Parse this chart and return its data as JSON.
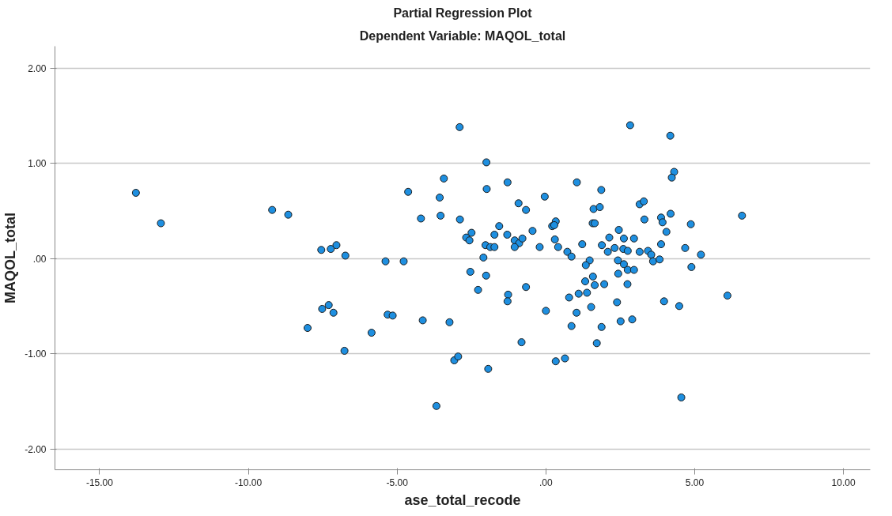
{
  "chart_data": {
    "type": "scatter",
    "title": "Partial Regression Plot",
    "subtitle": "Dependent Variable: MAQOL_total",
    "xlabel": "ase_total_recode",
    "ylabel": "MAQOL_total",
    "xlim": [
      -16.5,
      10.9
    ],
    "ylim": [
      -2.22,
      2.23
    ],
    "xticks": [
      {
        "value": -15,
        "label": "-15.00"
      },
      {
        "value": -10,
        "label": "-10.00"
      },
      {
        "value": -5,
        "label": "-5.00"
      },
      {
        "value": 0,
        "label": ".00"
      },
      {
        "value": 5,
        "label": "5.00"
      },
      {
        "value": 10,
        "label": "10.00"
      }
    ],
    "yticks": [
      {
        "value": -2,
        "label": "-2.00"
      },
      {
        "value": -1,
        "label": "-1.00"
      },
      {
        "value": 0,
        "label": ".00"
      },
      {
        "value": 1,
        "label": "1.00"
      },
      {
        "value": 2,
        "label": "2.00"
      }
    ],
    "grid": "y",
    "marker": "circle",
    "series": [
      {
        "color": "#1e8fe0",
        "x": [
          -13.78,
          -12.94,
          -9.2,
          -8.66,
          -8.01,
          -2.9,
          -2.0,
          -3.43,
          -4.63,
          -3.57,
          -1.99,
          -4.2,
          -3.54,
          -2.89,
          -1.57,
          -2.5,
          -2.68,
          -2.57,
          -1.73,
          -2.03,
          -1.87,
          -1.73,
          -2.1,
          -7.55,
          -7.23,
          -7.04,
          -6.74,
          -5.39,
          -4.78,
          -2.54,
          -2.01,
          -2.28,
          -7.52,
          -7.3,
          -7.14,
          -5.86,
          -5.32,
          -5.15,
          -4.14,
          -3.24,
          -6.77,
          -3.08,
          -2.95,
          -1.94,
          -3.68,
          -1.29,
          1.04,
          2.83,
          1.86,
          -0.04,
          -0.92,
          -0.67,
          1.6,
          1.81,
          3.15,
          3.29,
          3.31,
          0.21,
          0.33,
          0.28,
          1.57,
          1.64,
          -0.45,
          -1.3,
          -1.05,
          -0.9,
          -0.79,
          -1.05,
          -0.21,
          0.3,
          0.41,
          0.72,
          0.86,
          1.22,
          2.13,
          1.88,
          2.08,
          2.31,
          2.45,
          2.62,
          2.6,
          2.75,
          2.96,
          3.15,
          3.43,
          3.54,
          3.6,
          3.82,
          3.87,
          3.87,
          3.92,
          4.05,
          1.47,
          1.34,
          2.42,
          2.62,
          2.75,
          2.96,
          2.43,
          1.58,
          1.32,
          1.64,
          1.96,
          2.74,
          1.38,
          1.1,
          0.78,
          -0.67,
          -1.27,
          -1.29,
          2.39,
          3.97,
          0.0,
          1.52,
          1.03,
          0.86,
          1.87,
          2.51,
          2.9,
          -0.82,
          1.71,
          0.33,
          0.64,
          4.18,
          4.31,
          4.23,
          4.19,
          6.59,
          4.87,
          4.68,
          5.21,
          4.89,
          4.48,
          6.1,
          4.55
        ],
        "values": [
          0.69,
          0.37,
          0.51,
          0.46,
          -0.73,
          1.38,
          1.01,
          0.84,
          0.7,
          0.64,
          0.73,
          0.42,
          0.45,
          0.41,
          0.34,
          0.27,
          0.22,
          0.19,
          0.25,
          0.14,
          0.12,
          0.12,
          0.01,
          0.09,
          0.1,
          0.14,
          0.03,
          -0.03,
          -0.03,
          -0.14,
          -0.18,
          -0.33,
          -0.53,
          -0.49,
          -0.57,
          -0.78,
          -0.59,
          -0.6,
          -0.65,
          -0.67,
          -0.97,
          -1.07,
          -1.03,
          -1.16,
          -1.55,
          0.8,
          0.8,
          1.4,
          0.72,
          0.65,
          0.58,
          0.51,
          0.52,
          0.54,
          0.57,
          0.6,
          0.41,
          0.34,
          0.39,
          0.35,
          0.37,
          0.37,
          0.29,
          0.25,
          0.19,
          0.16,
          0.21,
          0.12,
          0.12,
          0.2,
          0.12,
          0.07,
          0.02,
          0.15,
          0.22,
          0.14,
          0.07,
          0.11,
          0.3,
          0.21,
          0.1,
          0.08,
          0.21,
          0.07,
          0.08,
          0.04,
          -0.03,
          -0.01,
          0.15,
          0.43,
          0.38,
          0.28,
          -0.02,
          -0.07,
          -0.02,
          -0.06,
          -0.12,
          -0.12,
          -0.16,
          -0.19,
          -0.24,
          -0.28,
          -0.27,
          -0.27,
          -0.36,
          -0.37,
          -0.41,
          -0.3,
          -0.38,
          -0.45,
          -0.46,
          -0.45,
          -0.55,
          -0.51,
          -0.57,
          -0.71,
          -0.72,
          -0.66,
          -0.64,
          -0.88,
          -0.89,
          -1.08,
          -1.05,
          1.29,
          0.91,
          0.85,
          0.47,
          0.45,
          0.36,
          0.11,
          0.04,
          -0.09,
          -0.5,
          -0.39,
          -1.46
        ]
      }
    ]
  }
}
